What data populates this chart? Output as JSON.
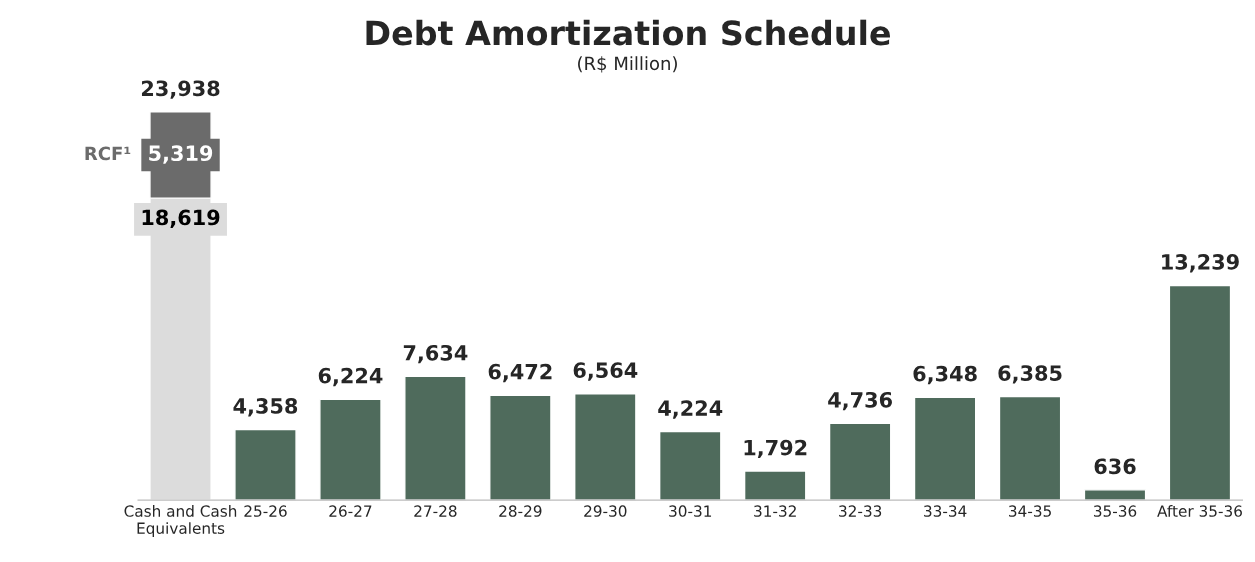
{
  "chart_data": {
    "type": "bar",
    "title": "Debt Amortization Schedule",
    "subtitle": "(R$ Million)",
    "categories": [
      "Cash and Cash\nEquivalents",
      "25-26",
      "26-27",
      "27-28",
      "28-29",
      "29-30",
      "30-31",
      "31-32",
      "32-33",
      "33-34",
      "34-35",
      "35-36",
      "After 35-36"
    ],
    "stacked": true,
    "series": [
      {
        "colors": [
          "#dcdcdc",
          "#4f6b5c",
          "#4f6b5c",
          "#4f6b5c",
          "#4f6b5c",
          "#4f6b5c",
          "#4f6b5c",
          "#4f6b5c",
          "#4f6b5c",
          "#4f6b5c",
          "#4f6b5c",
          "#4f6b5c",
          "#4f6b5c"
        ],
        "values": [
          18619,
          4358,
          6224,
          7634,
          6472,
          6564,
          4224,
          1792,
          4736,
          6348,
          6385,
          636,
          13239
        ],
        "value_labels": [
          "18,619",
          "4,358",
          "6,224",
          "7,634",
          "6,472",
          "6,564",
          "4,224",
          "1,792",
          "4,736",
          "6,348",
          "6,385",
          "636",
          "13,239"
        ]
      },
      {
        "name": "RCF¹",
        "color": "#6b6b6b",
        "values": [
          5319,
          null,
          null,
          null,
          null,
          null,
          null,
          null,
          null,
          null,
          null,
          null,
          null
        ],
        "value_labels": [
          "5,319",
          null,
          null,
          null,
          null,
          null,
          null,
          null,
          null,
          null,
          null,
          null,
          null
        ]
      }
    ],
    "totals": [
      "23,938",
      null,
      null,
      null,
      null,
      null,
      null,
      null,
      null,
      null,
      null,
      null,
      null
    ],
    "grid": false,
    "legend": "left"
  }
}
